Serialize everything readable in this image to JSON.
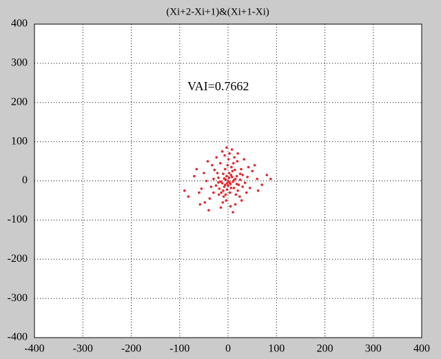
{
  "chart_data": {
    "type": "scatter",
    "title": "(Xi+2-Xi+1)&(Xi+1-Xi)",
    "annotation": "VAI=0.7662",
    "color": "#e8262a",
    "grid": true,
    "xlim": [
      -400,
      400
    ],
    "xticks": [
      -400,
      -300,
      -200,
      -100,
      0,
      100,
      200,
      300,
      400
    ],
    "ylim": [
      -400,
      400
    ],
    "yticks": [
      -400,
      -300,
      -200,
      -100,
      0,
      100,
      200,
      300,
      400
    ],
    "x": [
      -5,
      3,
      8,
      -12,
      15,
      0,
      -20,
      22,
      6,
      -8,
      10,
      -3,
      18,
      -15,
      25,
      -25,
      2,
      12,
      -10,
      5,
      30,
      -30,
      -2,
      9,
      -18,
      14,
      -6,
      20,
      -22,
      4,
      35,
      -35,
      7,
      -14,
      16,
      -1,
      27,
      -28,
      11,
      -9,
      40,
      -45,
      1,
      -4,
      13,
      -16,
      24,
      -19,
      45,
      -50,
      3,
      -7,
      19,
      -11,
      50,
      -55,
      28,
      -33,
      60,
      -60,
      8,
      -3,
      33,
      -38,
      70,
      -70,
      5,
      -12,
      38,
      -42,
      80,
      -82,
      15,
      -24,
      55,
      -48,
      88,
      -65,
      -58,
      62,
      -90,
      42,
      -40,
      10,
      -15,
      20,
      -5,
      0,
      12,
      -8,
      6,
      -2,
      18,
      -20,
      25,
      -10,
      30,
      -30,
      2,
      -6
    ],
    "y": [
      3,
      -4,
      10,
      -6,
      5,
      0,
      8,
      -10,
      15,
      -15,
      -2,
      12,
      12,
      -2,
      3,
      -12,
      20,
      -18,
      18,
      -8,
      15,
      5,
      -22,
      25,
      -20,
      28,
      30,
      -25,
      20,
      -30,
      -5,
      -15,
      35,
      -30,
      -35,
      40,
      30,
      28,
      45,
      -40,
      10,
      0,
      55,
      -50,
      60,
      45,
      -40,
      -35,
      -18,
      20,
      70,
      65,
      50,
      -55,
      25,
      -20,
      -50,
      40,
      5,
      -30,
      80,
      85,
      55,
      -45,
      -10,
      12,
      -65,
      75,
      -30,
      50,
      15,
      -40,
      -60,
      60,
      40,
      -55,
      5,
      30,
      -60,
      -25,
      -25,
      35,
      -75,
      -80,
      -68,
      70,
      -35,
      -12,
      2,
      6,
      -18,
      -6,
      -8,
      -4,
      18,
      -25,
      -15,
      -30,
      8,
      -10
    ]
  }
}
